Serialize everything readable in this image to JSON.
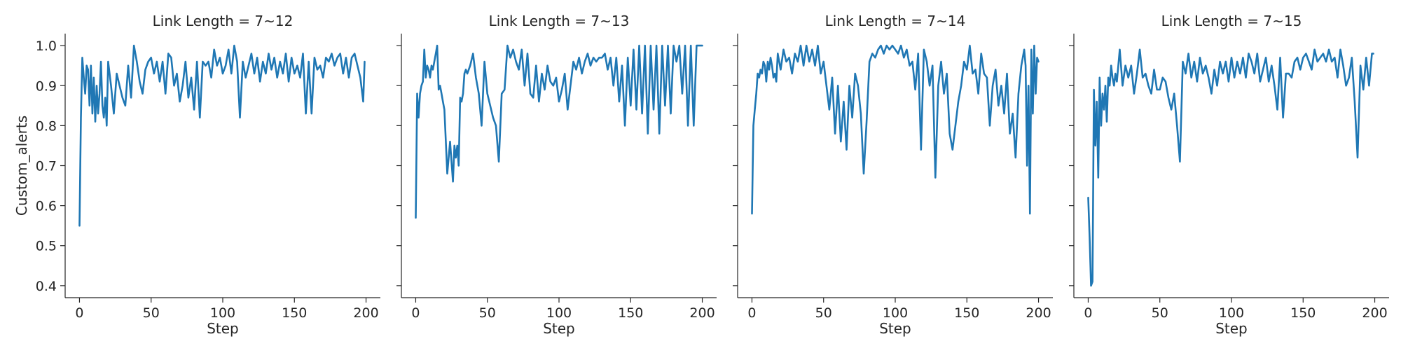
{
  "figure": {
    "y_axis_label": "Custom_alerts",
    "line_color": "#1f77b4"
  },
  "chart_data": [
    {
      "type": "line",
      "title": "Link Length = 7~12",
      "xlabel": "Step",
      "ylabel": "Custom_alerts",
      "xlim": [
        -10,
        210
      ],
      "ylim": [
        0.37,
        1.03
      ],
      "xticks": [
        0,
        50,
        100,
        150,
        200
      ],
      "yticks": [
        0.4,
        0.5,
        0.6,
        0.7,
        0.8,
        0.9,
        1.0
      ],
      "grid": false,
      "series": [
        {
          "x": [
            0,
            1,
            2,
            3,
            4,
            5,
            6,
            7,
            8,
            9,
            10,
            11,
            12,
            13,
            14,
            15,
            16,
            17,
            18,
            19,
            20,
            22,
            24,
            26,
            28,
            30,
            32,
            34,
            36,
            38,
            40,
            42,
            44,
            46,
            48,
            50,
            52,
            54,
            56,
            58,
            60,
            62,
            64,
            66,
            68,
            70,
            72,
            74,
            76,
            78,
            80,
            82,
            84,
            86,
            88,
            90,
            92,
            94,
            96,
            98,
            100,
            102,
            104,
            106,
            108,
            110,
            112,
            114,
            116,
            118,
            120,
            122,
            124,
            126,
            128,
            130,
            132,
            134,
            136,
            138,
            140,
            142,
            144,
            146,
            148,
            150,
            152,
            154,
            156,
            158,
            160,
            162,
            164,
            166,
            168,
            170,
            172,
            174,
            176,
            178,
            180,
            182,
            184,
            186,
            188,
            190,
            192,
            194,
            196,
            198,
            199
          ],
          "y": [
            0.55,
            0.82,
            0.97,
            0.92,
            0.88,
            0.95,
            0.94,
            0.85,
            0.95,
            0.83,
            0.92,
            0.81,
            0.9,
            0.83,
            0.88,
            0.96,
            0.85,
            0.82,
            0.87,
            0.8,
            0.96,
            0.9,
            0.83,
            0.93,
            0.9,
            0.87,
            0.85,
            0.95,
            0.87,
            1.0,
            0.96,
            0.91,
            0.88,
            0.94,
            0.96,
            0.97,
            0.93,
            0.96,
            0.91,
            0.96,
            0.88,
            0.98,
            0.97,
            0.9,
            0.93,
            0.86,
            0.9,
            0.96,
            0.87,
            0.92,
            0.84,
            0.96,
            0.82,
            0.96,
            0.95,
            0.96,
            0.92,
            0.99,
            0.95,
            0.97,
            0.93,
            0.95,
            0.99,
            0.93,
            1.0,
            0.96,
            0.82,
            0.96,
            0.92,
            0.95,
            0.98,
            0.93,
            0.97,
            0.91,
            0.96,
            0.93,
            0.98,
            0.94,
            0.97,
            0.92,
            0.96,
            0.93,
            0.98,
            0.91,
            0.97,
            0.93,
            0.95,
            0.92,
            0.98,
            0.83,
            0.96,
            0.83,
            0.97,
            0.94,
            0.95,
            0.92,
            0.97,
            0.96,
            0.98,
            0.95,
            0.97,
            0.98,
            0.93,
            0.97,
            0.92,
            0.97,
            0.98,
            0.95,
            0.92,
            0.86,
            0.96
          ]
        }
      ]
    },
    {
      "type": "line",
      "title": "Link Length = 7~13",
      "xlabel": "Step",
      "ylabel": "",
      "xlim": [
        -10,
        210
      ],
      "ylim": [
        0.37,
        1.03
      ],
      "xticks": [
        0,
        50,
        100,
        150,
        200
      ],
      "yticks": [
        0.4,
        0.5,
        0.6,
        0.7,
        0.8,
        0.9,
        1.0
      ],
      "grid": false,
      "series": [
        {
          "x": [
            0,
            1,
            2,
            3,
            4,
            5,
            6,
            7,
            8,
            9,
            10,
            11,
            12,
            13,
            14,
            15,
            16,
            17,
            18,
            19,
            20,
            22,
            24,
            26,
            27,
            28,
            29,
            30,
            31,
            32,
            33,
            34,
            35,
            36,
            38,
            40,
            42,
            44,
            46,
            48,
            50,
            52,
            54,
            56,
            58,
            60,
            62,
            64,
            66,
            68,
            70,
            72,
            74,
            76,
            78,
            80,
            82,
            84,
            86,
            88,
            90,
            92,
            94,
            96,
            98,
            100,
            102,
            104,
            106,
            108,
            110,
            112,
            114,
            116,
            118,
            120,
            122,
            124,
            126,
            128,
            130,
            132,
            134,
            136,
            138,
            140,
            142,
            144,
            146,
            148,
            150,
            152,
            154,
            156,
            158,
            160,
            162,
            164,
            166,
            168,
            170,
            172,
            174,
            176,
            178,
            180,
            182,
            184,
            186,
            188,
            190,
            192,
            194,
            196,
            198,
            200
          ],
          "y": [
            0.57,
            0.88,
            0.82,
            0.88,
            0.9,
            0.91,
            0.99,
            0.92,
            0.95,
            0.94,
            0.92,
            0.95,
            0.94,
            0.96,
            0.98,
            1.0,
            0.89,
            0.9,
            0.88,
            0.86,
            0.84,
            0.68,
            0.76,
            0.66,
            0.75,
            0.72,
            0.75,
            0.7,
            0.87,
            0.86,
            0.88,
            0.93,
            0.94,
            0.93,
            0.95,
            0.98,
            0.92,
            0.88,
            0.8,
            0.96,
            0.88,
            0.85,
            0.82,
            0.8,
            0.71,
            0.88,
            0.89,
            1.0,
            0.97,
            0.99,
            0.96,
            0.94,
            0.99,
            0.9,
            0.98,
            0.88,
            0.87,
            0.95,
            0.86,
            0.93,
            0.89,
            0.95,
            0.91,
            0.9,
            0.92,
            0.86,
            0.89,
            0.93,
            0.84,
            0.9,
            0.96,
            0.94,
            0.97,
            0.93,
            0.96,
            0.98,
            0.95,
            0.97,
            0.96,
            0.97,
            0.97,
            0.98,
            0.94,
            0.97,
            0.9,
            0.97,
            0.86,
            0.95,
            0.8,
            0.97,
            0.85,
            0.99,
            0.84,
            1.0,
            0.83,
            1.0,
            0.78,
            1.0,
            0.84,
            1.0,
            0.78,
            1.0,
            0.85,
            1.0,
            0.83,
            1.0,
            0.96,
            1.0,
            0.88,
            1.0,
            0.8,
            1.0,
            0.8,
            1.0,
            1.0,
            1.0
          ]
        }
      ]
    },
    {
      "type": "line",
      "title": "Link Length = 7~14",
      "xlabel": "Step",
      "ylabel": "",
      "xlim": [
        -10,
        210
      ],
      "ylim": [
        0.37,
        1.03
      ],
      "xticks": [
        0,
        50,
        100,
        150,
        200
      ],
      "yticks": [
        0.4,
        0.5,
        0.6,
        0.7,
        0.8,
        0.9,
        1.0
      ],
      "grid": false,
      "series": [
        {
          "x": [
            0,
            1,
            2,
            3,
            4,
            5,
            6,
            7,
            8,
            9,
            10,
            11,
            12,
            13,
            14,
            15,
            16,
            17,
            18,
            19,
            20,
            22,
            24,
            26,
            28,
            30,
            32,
            34,
            36,
            38,
            40,
            42,
            44,
            46,
            48,
            50,
            52,
            54,
            56,
            58,
            60,
            62,
            64,
            66,
            68,
            70,
            72,
            74,
            76,
            78,
            80,
            82,
            84,
            86,
            88,
            90,
            92,
            94,
            96,
            98,
            100,
            102,
            104,
            106,
            108,
            110,
            112,
            114,
            116,
            118,
            120,
            122,
            124,
            126,
            128,
            130,
            132,
            134,
            136,
            138,
            140,
            142,
            144,
            146,
            148,
            150,
            152,
            154,
            156,
            158,
            160,
            162,
            164,
            166,
            168,
            170,
            172,
            174,
            176,
            178,
            180,
            182,
            184,
            186,
            188,
            190,
            191,
            192,
            193,
            194,
            195,
            196,
            197,
            198,
            199,
            200
          ],
          "y": [
            0.58,
            0.8,
            0.84,
            0.88,
            0.93,
            0.92,
            0.94,
            0.93,
            0.96,
            0.95,
            0.91,
            0.96,
            0.94,
            0.97,
            0.95,
            0.92,
            0.93,
            0.91,
            0.98,
            0.96,
            0.94,
            0.99,
            0.96,
            0.97,
            0.93,
            0.98,
            0.96,
            1.0,
            0.95,
            1.0,
            0.96,
            0.99,
            0.95,
            1.0,
            0.93,
            0.96,
            0.9,
            0.84,
            0.92,
            0.78,
            0.9,
            0.76,
            0.86,
            0.74,
            0.9,
            0.82,
            0.93,
            0.9,
            0.83,
            0.68,
            0.81,
            0.96,
            0.98,
            0.97,
            0.99,
            1.0,
            0.98,
            1.0,
            0.99,
            1.0,
            0.99,
            0.98,
            1.0,
            0.97,
            0.99,
            0.95,
            0.96,
            0.89,
            0.98,
            0.74,
            0.99,
            0.96,
            0.9,
            0.95,
            0.67,
            0.9,
            0.96,
            0.88,
            0.93,
            0.78,
            0.74,
            0.8,
            0.86,
            0.9,
            0.96,
            0.94,
            1.0,
            0.93,
            0.94,
            0.88,
            0.98,
            0.93,
            0.92,
            0.8,
            0.9,
            0.94,
            0.85,
            0.9,
            0.83,
            0.93,
            0.78,
            0.83,
            0.72,
            0.88,
            0.95,
            0.99,
            0.95,
            0.7,
            0.9,
            0.58,
            0.99,
            0.83,
            1.0,
            0.88,
            0.97,
            0.96
          ]
        }
      ]
    },
    {
      "type": "line",
      "title": "Link Length = 7~15",
      "xlabel": "Step",
      "ylabel": "",
      "xlim": [
        -10,
        210
      ],
      "ylim": [
        0.37,
        1.03
      ],
      "xticks": [
        0,
        50,
        100,
        150,
        200
      ],
      "yticks": [
        0.4,
        0.5,
        0.6,
        0.7,
        0.8,
        0.9,
        1.0
      ],
      "grid": false,
      "series": [
        {
          "x": [
            0,
            1,
            2,
            3,
            4,
            5,
            6,
            7,
            8,
            9,
            10,
            11,
            12,
            13,
            14,
            15,
            16,
            17,
            18,
            19,
            20,
            22,
            24,
            26,
            28,
            30,
            32,
            34,
            36,
            38,
            40,
            42,
            44,
            46,
            48,
            50,
            52,
            54,
            56,
            58,
            60,
            62,
            64,
            66,
            68,
            70,
            72,
            74,
            76,
            78,
            80,
            82,
            84,
            86,
            88,
            90,
            92,
            94,
            96,
            98,
            100,
            102,
            104,
            106,
            108,
            110,
            112,
            114,
            116,
            118,
            120,
            122,
            124,
            126,
            128,
            130,
            132,
            134,
            136,
            138,
            140,
            142,
            144,
            146,
            148,
            150,
            152,
            154,
            156,
            158,
            160,
            162,
            164,
            166,
            168,
            170,
            172,
            174,
            176,
            178,
            180,
            182,
            184,
            186,
            188,
            190,
            192,
            194,
            196,
            198,
            199
          ],
          "y": [
            0.62,
            0.52,
            0.4,
            0.41,
            0.89,
            0.75,
            0.86,
            0.67,
            0.92,
            0.8,
            0.88,
            0.84,
            0.9,
            0.81,
            0.92,
            0.9,
            0.95,
            0.92,
            0.9,
            0.93,
            0.91,
            0.99,
            0.9,
            0.95,
            0.92,
            0.95,
            0.88,
            0.93,
            0.99,
            0.92,
            0.93,
            0.9,
            0.88,
            0.94,
            0.89,
            0.89,
            0.92,
            0.91,
            0.87,
            0.84,
            0.88,
            0.8,
            0.71,
            0.96,
            0.93,
            0.98,
            0.92,
            0.96,
            0.91,
            0.97,
            0.93,
            0.95,
            0.92,
            0.88,
            0.94,
            0.9,
            0.96,
            0.93,
            0.96,
            0.91,
            0.97,
            0.92,
            0.96,
            0.93,
            0.97,
            0.92,
            0.98,
            0.96,
            0.93,
            0.98,
            0.91,
            0.94,
            0.97,
            0.91,
            0.95,
            0.9,
            0.84,
            0.97,
            0.82,
            0.93,
            0.93,
            0.92,
            0.96,
            0.97,
            0.94,
            0.97,
            0.98,
            0.96,
            0.94,
            0.99,
            0.96,
            0.97,
            0.98,
            0.96,
            0.99,
            0.96,
            0.97,
            0.92,
            0.99,
            0.95,
            0.9,
            0.92,
            0.97,
            0.86,
            0.72,
            0.95,
            0.89,
            0.97,
            0.9,
            0.98,
            0.98
          ]
        }
      ]
    }
  ]
}
